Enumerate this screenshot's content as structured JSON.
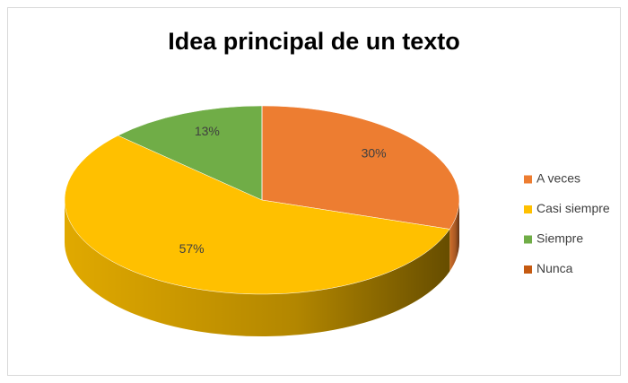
{
  "chart_data": {
    "type": "pie",
    "title": "Idea principal de un texto",
    "categories": [
      "A veces",
      "Casi siempre",
      "Siempre",
      "Nunca"
    ],
    "values": [
      30,
      57,
      13,
      0
    ],
    "value_labels": [
      "30%",
      "57%",
      "13%",
      null
    ],
    "colors": [
      "#ED7D31",
      "#FFC000",
      "#70AD47",
      "#C55A11"
    ],
    "legend": "right"
  }
}
